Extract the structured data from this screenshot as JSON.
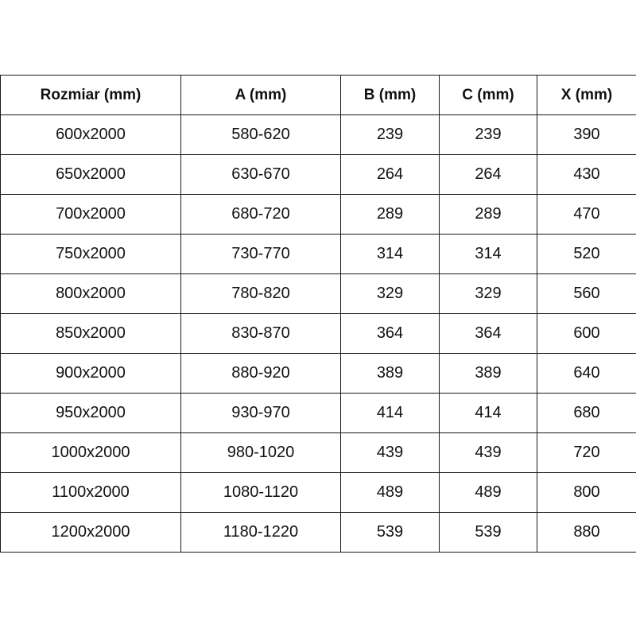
{
  "table": {
    "headers": [
      "Rozmiar (mm)",
      "A (mm)",
      "B (mm)",
      "C (mm)",
      "X (mm)"
    ],
    "rows": [
      [
        "600x2000",
        "580-620",
        "239",
        "239",
        "390"
      ],
      [
        "650x2000",
        "630-670",
        "264",
        "264",
        "430"
      ],
      [
        "700x2000",
        "680-720",
        "289",
        "289",
        "470"
      ],
      [
        "750x2000",
        "730-770",
        "314",
        "314",
        "520"
      ],
      [
        "800x2000",
        "780-820",
        "329",
        "329",
        "560"
      ],
      [
        "850x2000",
        "830-870",
        "364",
        "364",
        "600"
      ],
      [
        "900x2000",
        "880-920",
        "389",
        "389",
        "640"
      ],
      [
        "950x2000",
        "930-970",
        "414",
        "414",
        "680"
      ],
      [
        "1000x2000",
        "980-1020",
        "439",
        "439",
        "720"
      ],
      [
        "1100x2000",
        "1080-1120",
        "489",
        "489",
        "800"
      ],
      [
        "1200x2000",
        "1180-1220",
        "539",
        "539",
        "880"
      ]
    ]
  }
}
